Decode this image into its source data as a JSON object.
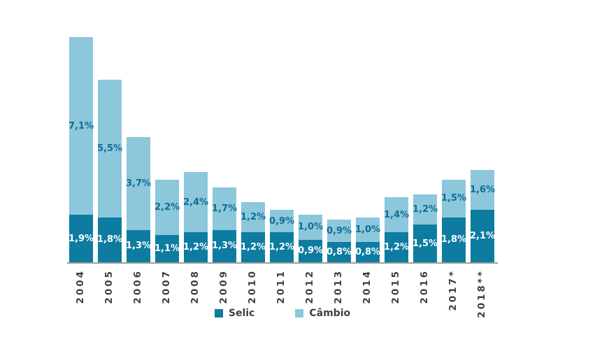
{
  "chart_data": {
    "type": "bar",
    "stacked": true,
    "categories": [
      "2004",
      "2005",
      "2006",
      "2007",
      "2008",
      "2009",
      "2010",
      "2011",
      "2012",
      "2013",
      "2014",
      "2015",
      "2016",
      "2017*",
      "2018**"
    ],
    "series": [
      {
        "name": "Selic",
        "color": "#0d7ca0",
        "label_color": "#ffffff",
        "values": [
          1.9,
          1.8,
          1.3,
          1.1,
          1.2,
          1.3,
          1.2,
          1.2,
          0.9,
          0.8,
          0.8,
          1.2,
          1.5,
          1.8,
          2.1
        ],
        "labels": [
          "1,9%",
          "1,8%",
          "1,3%",
          "1,1%",
          "1,2%",
          "1,3%",
          "1,2%",
          "1,2%",
          "0,9%",
          "0,8%",
          "0,8%",
          "1,2%",
          "1,5%",
          "1,8%",
          "2,1%"
        ]
      },
      {
        "name": "Câmbio",
        "color": "#8cc7dc",
        "label_color": "#0e6e94",
        "values": [
          7.1,
          5.5,
          3.7,
          2.2,
          2.4,
          1.7,
          1.2,
          0.9,
          1.0,
          0.9,
          1.0,
          1.4,
          1.2,
          1.5,
          1.6
        ],
        "labels": [
          "7,1%",
          "5,5%",
          "3,7%",
          "2,2%",
          "2,4%",
          "1,7%",
          "1,2%",
          "0,9%",
          "1,0%",
          "0,9%",
          "1,0%",
          "1,4%",
          "1,2%",
          "1,5%",
          "1,6%"
        ]
      }
    ],
    "value_suffix": "%",
    "decimal_separator": ",",
    "ylim": [
      0,
      9.0
    ],
    "grid": false,
    "legend_position": "bottom",
    "axis_line_color": "#9d9d9d",
    "tick_label_color": "#3f3f3f"
  },
  "legend": {
    "items": [
      {
        "label": "Selic",
        "color": "#0d7ca0"
      },
      {
        "label": "Câmbio",
        "color": "#8cc7dc"
      }
    ]
  }
}
